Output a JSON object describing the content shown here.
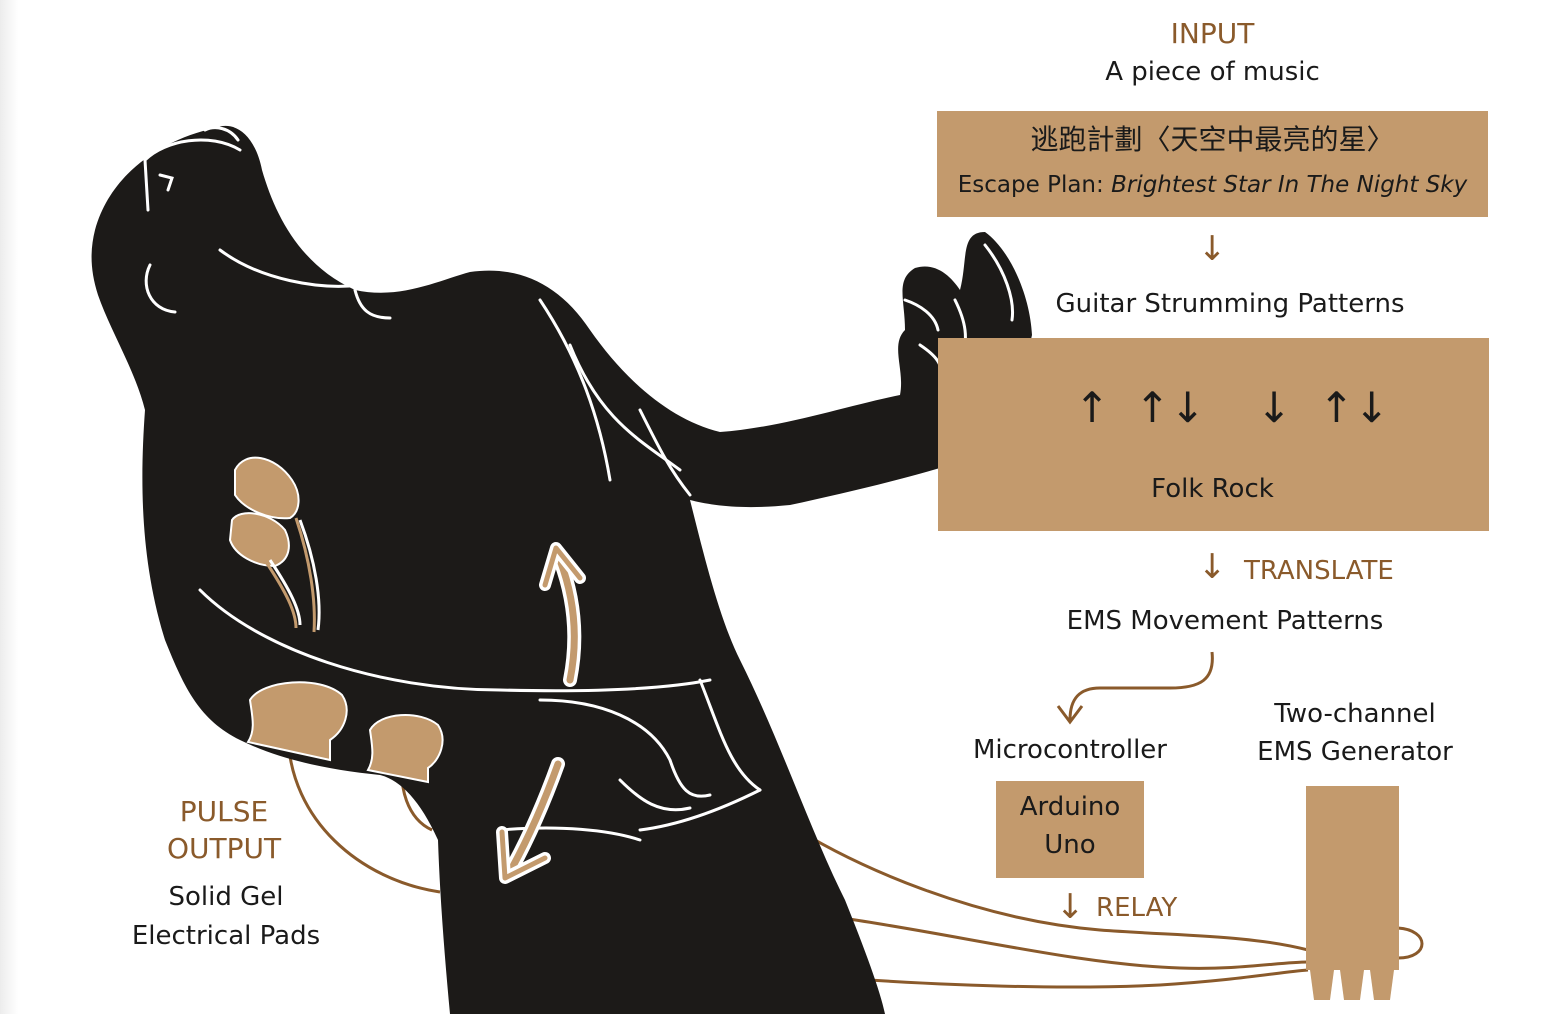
{
  "colors": {
    "accent": "#8a5a2b",
    "box_fill": "#c39a6d",
    "silhouette": "#1c1a18",
    "outline": "#ffffff"
  },
  "input": {
    "heading": "INPUT",
    "subtitle": "A piece of music",
    "song_title_chinese": "逃跑計劃〈天空中最亮的星〉",
    "song_title_prefix": "Escape Plan: ",
    "song_title_english": "Brightest Star In The Night Sky"
  },
  "strumming": {
    "label": "Guitar Strumming Patterns",
    "genre": "Folk Rock",
    "pattern_glyphs": [
      "↑",
      "↑↓",
      "↓",
      "↑↓"
    ]
  },
  "translate": {
    "label": "TRANSLATE"
  },
  "ems_patterns": {
    "label": "EMS Movement Patterns"
  },
  "microcontroller": {
    "label": "Microcontroller",
    "box_line1": "Arduino",
    "box_line2": "Uno"
  },
  "relay": {
    "label": "RELAY"
  },
  "generator": {
    "label_line1": "Two-channel",
    "label_line2": "EMS Generator"
  },
  "pulse_output": {
    "heading_line1": "PULSE",
    "heading_line2": "OUTPUT",
    "desc_line1": "Solid Gel",
    "desc_line2": "Electrical Pads"
  }
}
